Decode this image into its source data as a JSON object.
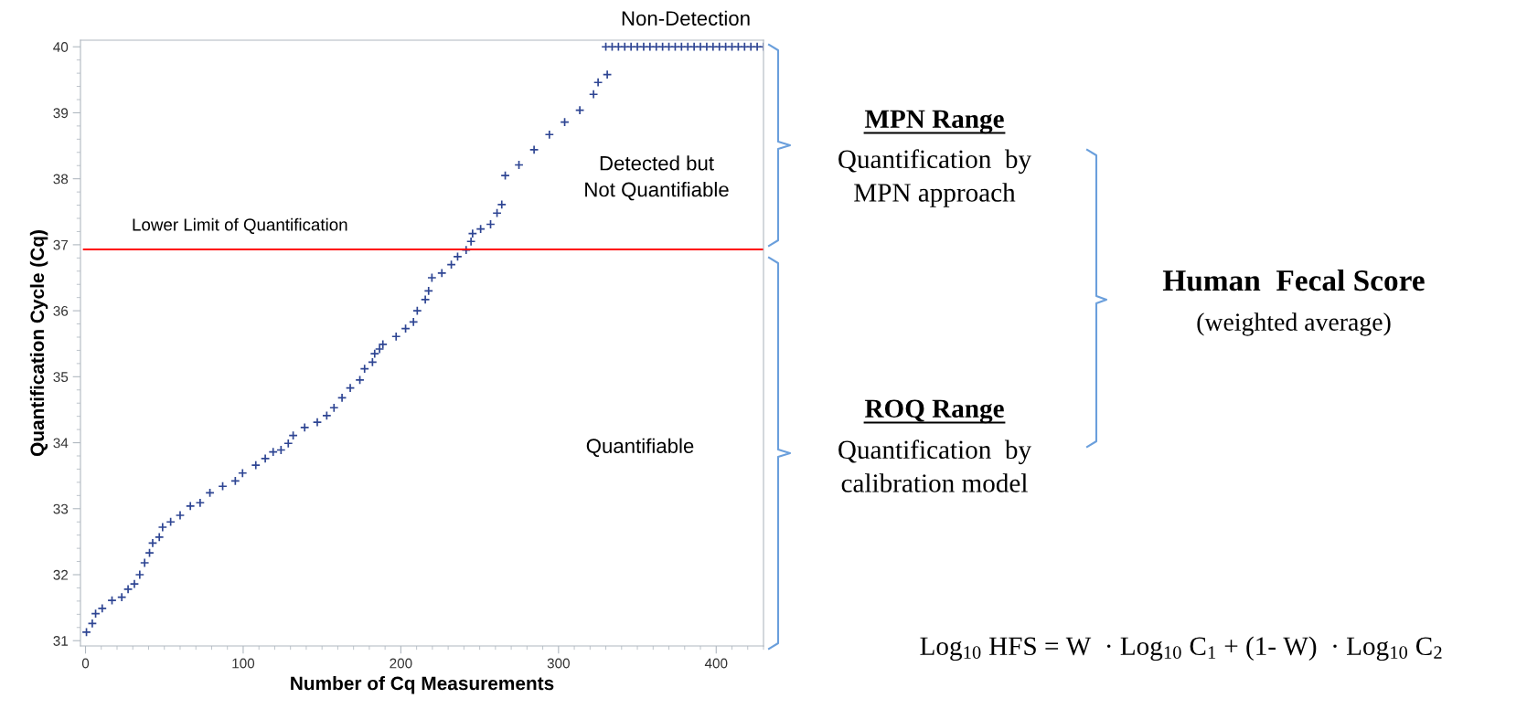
{
  "chart_data": {
    "type": "scatter",
    "xlabel": "Number of Cq Measurements",
    "ylabel": "Quantification Cycle (Cq)",
    "xlim": [
      -3.2,
      430
    ],
    "ylim": [
      30.92,
      40.1
    ],
    "xticks": [
      0,
      100,
      200,
      300,
      400
    ],
    "yticks": [
      31,
      32,
      33,
      34,
      35,
      36,
      37,
      38,
      39,
      40
    ],
    "marker": "cross",
    "series": [
      {
        "color": "#2e4593",
        "x": [
          0.6,
          4.3,
          6.4,
          10.6,
          16.8,
          23,
          27,
          31,
          34.4,
          37.5,
          40.6,
          42.6,
          46.8,
          48.9,
          54,
          60,
          66.5,
          72.7,
          78.9,
          87,
          95,
          99.6,
          108,
          114,
          119,
          124,
          128.6,
          131.7,
          139,
          147,
          153,
          157.6,
          162.7,
          167.9,
          174,
          177,
          182,
          183.4,
          186.5,
          188.6,
          197,
          203,
          208,
          210.4,
          215.5,
          217.6,
          219.7,
          226,
          232,
          236,
          241.4,
          244.5,
          245.5,
          250.6,
          256.9,
          261,
          264,
          266.2,
          274.9,
          284.5,
          294.2,
          303.9,
          313.5,
          322.2,
          325.1,
          330.9,
          330,
          334,
          338,
          342,
          346,
          350,
          354,
          358,
          362,
          366,
          370,
          374,
          378,
          382,
          386,
          390,
          394,
          398,
          402,
          406,
          410,
          414,
          418,
          422,
          426,
          430
        ],
        "values": [
          31.13,
          31.26,
          31.41,
          31.49,
          31.61,
          31.66,
          31.78,
          31.86,
          32.0,
          32.18,
          32.33,
          32.48,
          32.57,
          32.72,
          32.8,
          32.9,
          33.04,
          33.09,
          33.24,
          33.34,
          33.42,
          33.54,
          33.66,
          33.76,
          33.86,
          33.89,
          33.99,
          34.11,
          34.23,
          34.31,
          34.41,
          34.53,
          34.68,
          34.83,
          34.95,
          35.12,
          35.22,
          35.35,
          35.42,
          35.49,
          35.61,
          35.73,
          35.83,
          36.0,
          36.17,
          36.3,
          36.5,
          36.57,
          36.7,
          36.82,
          36.92,
          37.05,
          37.17,
          37.24,
          37.31,
          37.48,
          37.61,
          38.05,
          38.21,
          38.44,
          38.67,
          38.86,
          39.04,
          39.28,
          39.46,
          39.58,
          40,
          40,
          40,
          40,
          40,
          40,
          40,
          40,
          40,
          40,
          40,
          40,
          40,
          40,
          40,
          40,
          40,
          40,
          40,
          40,
          40,
          40,
          40,
          40,
          40,
          40
        ]
      }
    ],
    "ref_lines": [
      {
        "axis": "y",
        "value": 36.93,
        "label": "Lower Limit of Quantification",
        "color": "#ff0000"
      }
    ],
    "annotations": [
      "Non-Detection",
      "Detected but\nNot Quantifiable",
      "Quantifiable",
      "MPN Range",
      "Quantification  by\nMPN approach",
      "ROQ Range",
      "Quantification  by\ncalibration model",
      "Human  Fecal Score",
      "(weighted average)",
      "Log$_{10}$ HFS = W  · Log$_{10}$ C$_{1}$ + (1- W)  · Log$_{10}$ C$_{2}$"
    ]
  }
}
